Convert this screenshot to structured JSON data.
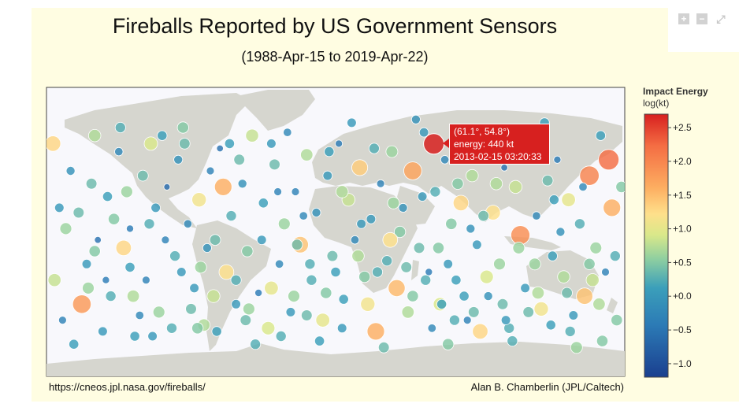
{
  "title": "Fireballs Reported by US Government Sensors",
  "subtitle": "(1988-Apr-15 to 2019-Apr-22)",
  "source_left": "https://cneos.jpl.nasa.gov/fireballs/",
  "source_right": "Alan B. Chamberlin (JPL/Caltech)",
  "toolbar": {
    "zoom_in": "+",
    "zoom_out": "−",
    "reset": "⤢"
  },
  "tooltip": {
    "line1": "(61.1°, 54.8°)",
    "line2": "energy: 440 kt",
    "line3": "2013-02-15 03:20:33"
  },
  "chart_data": {
    "type": "scatter",
    "projection": "equirectangular world map",
    "lon_range": [
      -180,
      180
    ],
    "lat_range": [
      -90,
      90
    ],
    "colorbar": {
      "title": "Impact Energy",
      "unit": "log(kt)",
      "range": [
        -1.2,
        2.7
      ],
      "ticks": [
        2.5,
        2.0,
        1.5,
        1.0,
        0.5,
        0.0,
        -0.5,
        -1.0
      ],
      "tick_labels": [
        "+2.5",
        "+2.0",
        "+1.5",
        "+1.0",
        "+0.5",
        "+0.0",
        "−0.5",
        "−1.0"
      ],
      "colorscale": [
        "#d7201f",
        "#f46d43",
        "#fdae61",
        "#fee08b",
        "#d9e88a",
        "#a6d96a",
        "#66bd63",
        "#3b9fba",
        "#2c7bb6",
        "#1a3f8f"
      ]
    },
    "highlighted_point": {
      "lon": 61.1,
      "lat": 54.8,
      "log_energy": 2.64,
      "energy_kt": 440,
      "date": "2013-02-15 03:20:33"
    },
    "points": [
      [
        -170,
        -55,
        -0.3
      ],
      [
        -165,
        38,
        -0.1
      ],
      [
        -160,
        12,
        0.3
      ],
      [
        -155,
        -20,
        0.0
      ],
      [
        -150,
        60,
        0.6
      ],
      [
        -148,
        -5,
        -0.5
      ],
      [
        -142,
        22,
        0.1
      ],
      [
        -140,
        -40,
        0.2
      ],
      [
        -135,
        50,
        -0.2
      ],
      [
        -132,
        -10,
        1.2
      ],
      [
        -128,
        2,
        -0.4
      ],
      [
        -125,
        -65,
        0.1
      ],
      [
        -120,
        35,
        0.3
      ],
      [
        -118,
        -30,
        -0.3
      ],
      [
        -115,
        55,
        0.8
      ],
      [
        -112,
        15,
        0.0
      ],
      [
        -110,
        -50,
        0.5
      ],
      [
        -105,
        28,
        -0.6
      ],
      [
        -100,
        -15,
        0.2
      ],
      [
        -98,
        45,
        -0.1
      ],
      [
        -95,
        65,
        0.4
      ],
      [
        -92,
        5,
        -0.2
      ],
      [
        -88,
        -35,
        0.0
      ],
      [
        -85,
        20,
        1.0
      ],
      [
        -82,
        -58,
        0.6
      ],
      [
        -78,
        38,
        -0.3
      ],
      [
        -75,
        -5,
        0.3
      ],
      [
        -72,
        52,
        -0.5
      ],
      [
        -68,
        -25,
        1.1
      ],
      [
        -65,
        10,
        0.2
      ],
      [
        -62,
        -45,
        0.0
      ],
      [
        -58,
        30,
        -0.1
      ],
      [
        -55,
        -12,
        0.4
      ],
      [
        -52,
        60,
        0.7
      ],
      [
        -48,
        -38,
        -0.4
      ],
      [
        -45,
        18,
        0.1
      ],
      [
        -42,
        -60,
        0.8
      ],
      [
        -38,
        42,
        0.3
      ],
      [
        -35,
        -20,
        -0.2
      ],
      [
        -32,
        5,
        0.5
      ],
      [
        -28,
        -50,
        0.0
      ],
      [
        -25,
        25,
        -0.3
      ],
      [
        -22,
        -8,
        1.4
      ],
      [
        -18,
        48,
        0.6
      ],
      [
        -15,
        -30,
        0.2
      ],
      [
        -12,
        12,
        -0.1
      ],
      [
        -8,
        -55,
        0.9
      ],
      [
        -5,
        35,
        0.0
      ],
      [
        -2,
        -15,
        0.3
      ],
      [
        2,
        55,
        -0.4
      ],
      [
        5,
        -42,
        0.1
      ],
      [
        8,
        20,
        0.7
      ],
      [
        12,
        -5,
        -0.2
      ],
      [
        15,
        40,
        1.3
      ],
      [
        18,
        -28,
        0.4
      ],
      [
        22,
        8,
        0.0
      ],
      [
        25,
        -62,
        1.6
      ],
      [
        28,
        30,
        -0.3
      ],
      [
        32,
        -18,
        0.2
      ],
      [
        35,
        50,
        0.5
      ],
      [
        38,
        -35,
        1.5
      ],
      [
        42,
        15,
        -0.1
      ],
      [
        45,
        -50,
        0.6
      ],
      [
        48,
        38,
        1.7
      ],
      [
        52,
        -10,
        0.3
      ],
      [
        55,
        62,
        0.0
      ],
      [
        58,
        -25,
        -0.4
      ],
      [
        62,
        25,
        0.2
      ],
      [
        65,
        -45,
        0.8
      ],
      [
        68,
        45,
        -0.2
      ],
      [
        72,
        5,
        0.4
      ],
      [
        75,
        -30,
        0.1
      ],
      [
        78,
        18,
        1.2
      ],
      [
        82,
        -55,
        -0.3
      ],
      [
        85,
        35,
        0.6
      ],
      [
        88,
        -8,
        0.0
      ],
      [
        92,
        52,
        0.3
      ],
      [
        95,
        -40,
        -0.1
      ],
      [
        98,
        12,
        1.1
      ],
      [
        102,
        -20,
        0.5
      ],
      [
        105,
        40,
        -0.5
      ],
      [
        108,
        -60,
        0.2
      ],
      [
        112,
        28,
        0.7
      ],
      [
        115,
        -2,
        1.9
      ],
      [
        118,
        -35,
        0.0
      ],
      [
        122,
        58,
        0.4
      ],
      [
        125,
        10,
        -0.2
      ],
      [
        128,
        -48,
        1.0
      ],
      [
        132,
        32,
        0.3
      ],
      [
        135,
        -15,
        0.1
      ],
      [
        138,
        45,
        -0.4
      ],
      [
        142,
        -28,
        0.6
      ],
      [
        145,
        20,
        0.9
      ],
      [
        148,
        -52,
        0.0
      ],
      [
        152,
        5,
        0.2
      ],
      [
        155,
        -40,
        1.4
      ],
      [
        158,
        35,
        2.0
      ],
      [
        162,
        -10,
        0.5
      ],
      [
        165,
        60,
        0.1
      ],
      [
        168,
        -25,
        -0.3
      ],
      [
        172,
        15,
        1.6
      ],
      [
        175,
        -55,
        0.4
      ],
      [
        -168,
        2,
        0.5
      ],
      [
        -158,
        -45,
        1.8
      ],
      [
        -138,
        8,
        0.4
      ],
      [
        -122,
        -52,
        -0.2
      ],
      [
        -108,
        60,
        0.1
      ],
      [
        -90,
        -48,
        0.3
      ],
      [
        -70,
        28,
        1.6
      ],
      [
        -50,
        -70,
        0.2
      ],
      [
        -30,
        62,
        -0.2
      ],
      [
        -10,
        -68,
        0.1
      ],
      [
        10,
        68,
        0.0
      ],
      [
        30,
        -72,
        0.3
      ],
      [
        50,
        70,
        -0.1
      ],
      [
        70,
        -70,
        0.4
      ],
      [
        90,
        -62,
        1.2
      ],
      [
        110,
        -68,
        0.2
      ],
      [
        130,
        68,
        0.1
      ],
      [
        150,
        -72,
        0.5
      ],
      [
        170,
        45,
        2.2
      ],
      [
        -175,
        -30,
        0.7
      ],
      [
        -145,
        -62,
        0.0
      ],
      [
        -130,
        25,
        0.5
      ],
      [
        -102,
        -60,
        0.2
      ],
      [
        -80,
        -10,
        -0.1
      ],
      [
        -60,
        45,
        0.3
      ],
      [
        -40,
        -35,
        0.9
      ],
      [
        -20,
        10,
        -0.2
      ],
      [
        0,
        -25,
        0.1
      ],
      [
        20,
        -45,
        1.0
      ],
      [
        40,
        0,
        0.4
      ],
      [
        60,
        -60,
        -0.2
      ],
      [
        80,
        -40,
        0.1
      ],
      [
        100,
        30,
        0.6
      ],
      [
        120,
        -50,
        0.3
      ],
      [
        140,
        0,
        -0.1
      ],
      [
        160,
        -30,
        0.7
      ],
      [
        178,
        28,
        0.4
      ],
      [
        -176,
        55,
        1.2
      ],
      [
        -163,
        -70,
        0.1
      ],
      [
        -152,
        30,
        0.3
      ],
      [
        -143,
        -30,
        -0.4
      ],
      [
        -126,
        -40,
        0.6
      ],
      [
        -116,
        5,
        0.2
      ],
      [
        -96,
        -25,
        0.0
      ],
      [
        -86,
        -60,
        0.4
      ],
      [
        -76,
        -40,
        0.7
      ],
      [
        -66,
        55,
        0.1
      ],
      [
        -56,
        -55,
        0.3
      ],
      [
        -46,
        -5,
        0.0
      ],
      [
        -36,
        25,
        -0.3
      ],
      [
        -26,
        -40,
        0.5
      ],
      [
        -16,
        -20,
        0.2
      ],
      [
        -6,
        -38,
        0.4
      ],
      [
        4,
        -60,
        0.0
      ],
      [
        14,
        -15,
        0.6
      ],
      [
        24,
        52,
        0.2
      ],
      [
        34,
        -5,
        1.1
      ],
      [
        44,
        -22,
        0.3
      ],
      [
        54,
        22,
        0.0
      ],
      [
        64,
        -10,
        0.4
      ],
      [
        74,
        -55,
        0.2
      ],
      [
        84,
        2,
        -0.1
      ],
      [
        94,
        -28,
        0.8
      ],
      [
        104,
        -45,
        0.3
      ],
      [
        114,
        50,
        0.0
      ],
      [
        124,
        -20,
        0.5
      ],
      [
        134,
        -58,
        0.1
      ],
      [
        144,
        -38,
        0.3
      ],
      [
        154,
        28,
        -0.2
      ],
      [
        164,
        -45,
        0.6
      ],
      [
        174,
        -15,
        0.2
      ],
      [
        -172,
        15,
        0.0
      ],
      [
        -150,
        -12,
        0.4
      ],
      [
        -128,
        -22,
        0.1
      ],
      [
        -106,
        -5,
        -0.3
      ],
      [
        -84,
        -22,
        0.5
      ],
      [
        -62,
        -30,
        0.2
      ],
      [
        -40,
        55,
        0.0
      ],
      [
        -18,
        -52,
        0.3
      ],
      [
        4,
        25,
        0.6
      ],
      [
        26,
        -25,
        0.2
      ],
      [
        48,
        -40,
        0.4
      ],
      [
        70,
        -20,
        0.0
      ],
      [
        92,
        10,
        0.3
      ],
      [
        114,
        -10,
        0.5
      ],
      [
        136,
        20,
        0.1
      ],
      [
        158,
        -20,
        0.4
      ],
      [
        -34,
        -65,
        0.2
      ],
      [
        -54,
        -48,
        0.5
      ],
      [
        -74,
        -62,
        0.1
      ],
      [
        -94,
        55,
        0.3
      ],
      [
        -114,
        -65,
        0.0
      ],
      [
        -134,
        65,
        0.2
      ],
      [
        -154,
        -35,
        0.5
      ],
      [
        66,
        -45,
        0.1
      ],
      [
        86,
        -50,
        0.3
      ],
      [
        106,
        -55,
        0.0
      ],
      [
        126,
        -38,
        0.6
      ],
      [
        146,
        -62,
        0.2
      ],
      [
        166,
        -68,
        0.4
      ],
      [
        -4,
        50,
        0.1
      ],
      [
        -24,
        -8,
        0.3
      ],
      [
        16,
        5,
        0.0
      ],
      [
        36,
        18,
        0.5
      ],
      [
        56,
        -30,
        0.2
      ],
      [
        76,
        30,
        0.4
      ]
    ]
  }
}
